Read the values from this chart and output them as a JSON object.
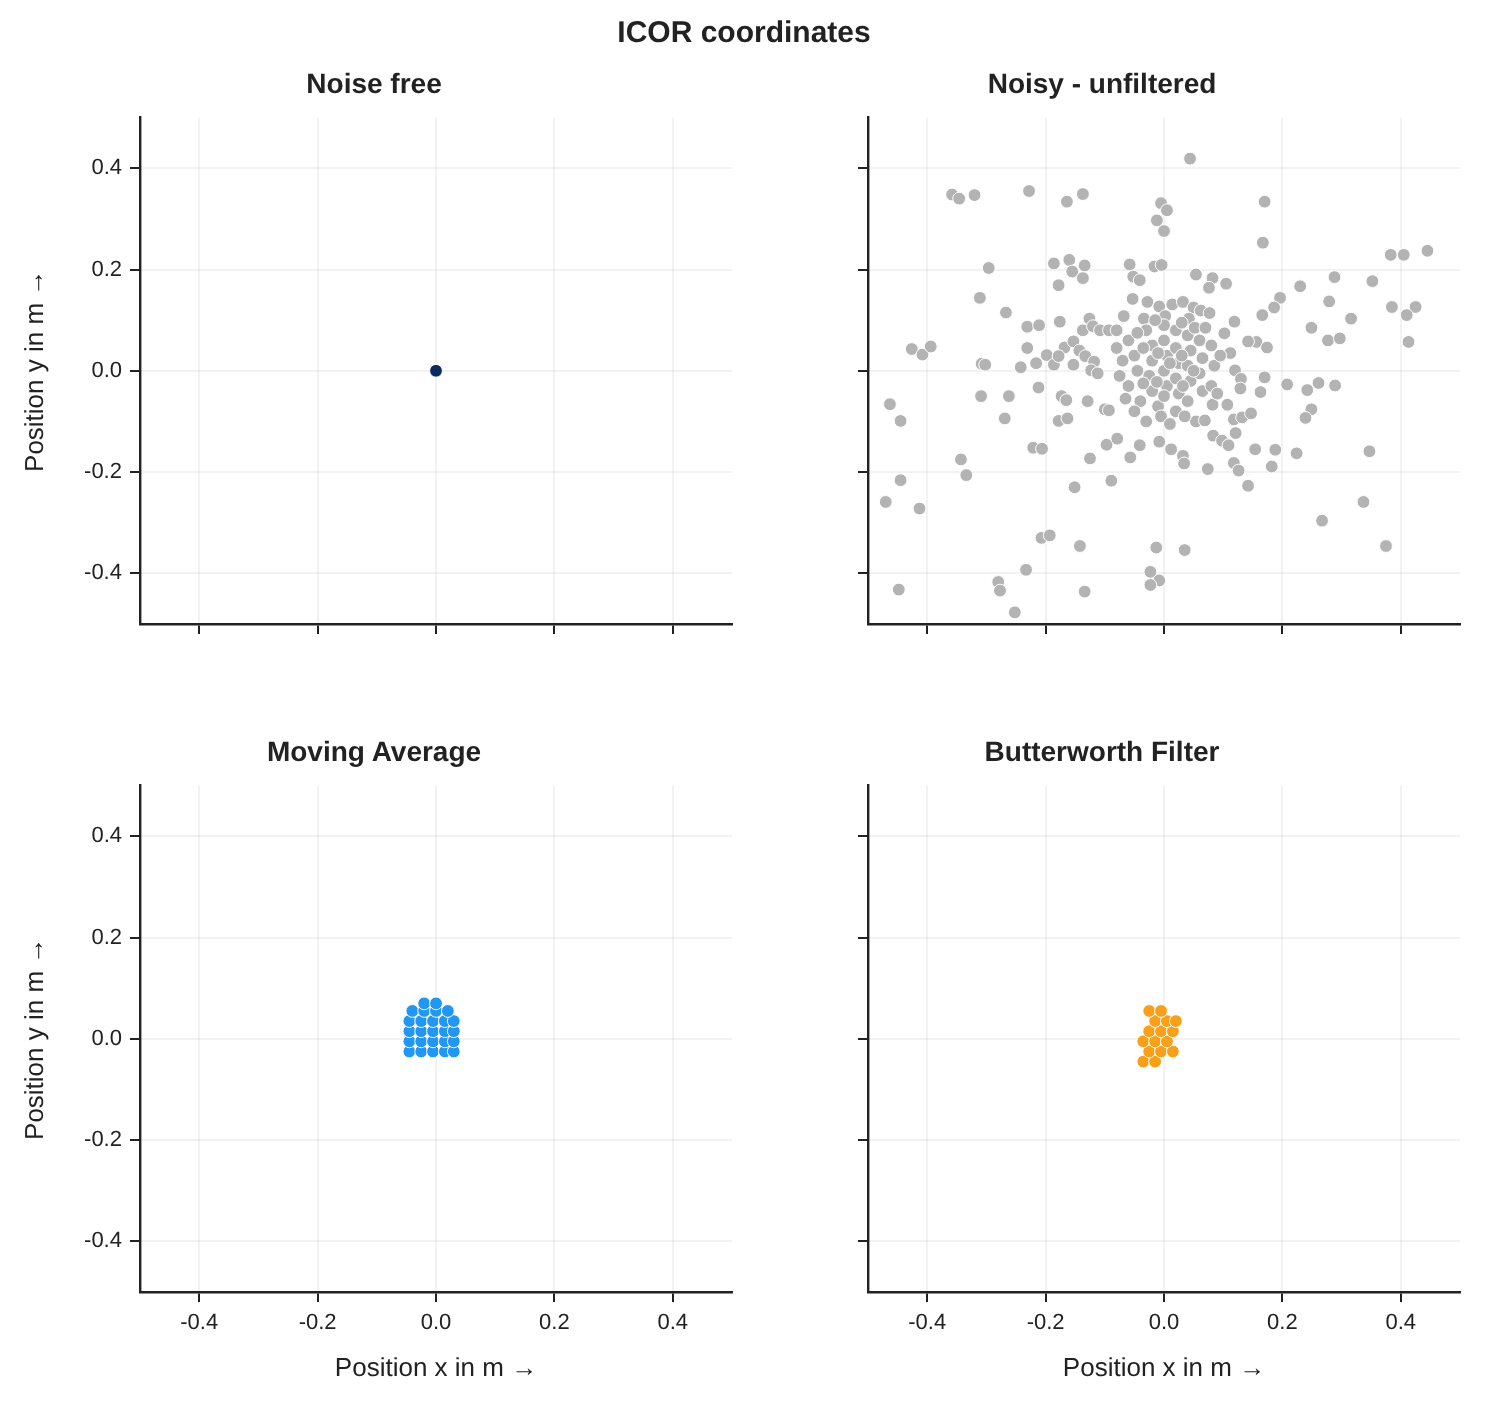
{
  "chart_data": [
    {
      "type": "scatter",
      "title": "Noise free",
      "ylabel": "Position y in m →",
      "annotations": [
        "ICOR coordinates"
      ],
      "color": "#0b2b5c",
      "marker": "circle",
      "grid": true,
      "tick_labels": "y",
      "xlim": [
        -0.5,
        0.5
      ],
      "ylim": [
        -0.5,
        0.5
      ],
      "xticks": [
        -0.4,
        -0.2,
        0,
        0.2,
        0.4
      ],
      "yticks": [
        -0.4,
        -0.2,
        {
          "value": 0,
          "label": "0.0"
        },
        0.2,
        0.4
      ],
      "x": [
        0
      ],
      "values": [
        0
      ]
    },
    {
      "type": "scatter",
      "title": "Noisy - unfiltered",
      "color": "#b3b3b3",
      "marker": "circle",
      "grid": true,
      "tick_labels": false,
      "xlim": [
        -0.5,
        0.5
      ],
      "ylim": [
        -0.5,
        0.5
      ],
      "xticks": [
        -0.4,
        -0.2,
        0,
        0.2,
        0.4
      ],
      "yticks": [
        -0.4,
        -0.2,
        0,
        0.2,
        0.4
      ],
      "x": [
        0.044,
        -0.358,
        -0.346,
        -0.32,
        -0.228,
        -0.164,
        -0.137,
        -0.005,
        0.005,
        -0.012,
        0,
        0.17,
        0.167,
        0.383,
        0.405,
        0.445,
        -0.296,
        -0.186,
        -0.16,
        -0.134,
        -0.155,
        -0.137,
        -0.178,
        -0.311,
        -0.267,
        -0.058,
        -0.016,
        -0.004,
        -0.052,
        -0.041,
        0.054,
        0.082,
        0.105,
        0.076,
        0.288,
        0.352,
        0.23,
        0.196,
        0.186,
        0.279,
        0.316,
        0.385,
        0.425,
        0.41,
        0.413,
        0.249,
        0.277,
        0.297,
        0.166,
        0.156,
        0.174,
        -0.426,
        -0.408,
        -0.394,
        -0.308,
        -0.302,
        -0.231,
        -0.211,
        -0.176,
        -0.231,
        -0.242,
        -0.216,
        -0.198,
        -0.186,
        -0.463,
        -0.445,
        -0.309,
        -0.262,
        -0.269,
        -0.212,
        -0.343,
        -0.334,
        -0.221,
        -0.206,
        -0.445,
        -0.47,
        -0.413,
        -0.448,
        -0.28,
        -0.277,
        -0.233,
        -0.252,
        -0.207,
        -0.193,
        -0.134,
        -0.142,
        -0.151,
        -0.089,
        -0.125,
        -0.013,
        0.035,
        -0.023,
        -0.008,
        -0.023,
        0.074,
        0.118,
        0.126,
        0.142,
        0.154,
        0.188,
        0.182,
        0.224,
        0.267,
        0.337,
        0.347,
        0.375,
        0.208,
        0.242,
        0.249,
        0.239,
        0.261,
        0.289,
        0.17,
        0.163,
        0.118,
        0.132,
        0.147,
        0.121,
        0.083,
        0.098,
        0.109,
        0.054,
        0.069,
        0.032,
        0.034,
        0.012,
        -0.008,
        -0.041,
        -0.057,
        -0.097,
        -0.079,
        -0.1,
        -0.093,
        -0.129,
        -0.178,
        -0.163,
        -0.173,
        -0.165,
        -0.137,
        -0.126,
        -0.12,
        -0.108,
        -0.093,
        -0.08,
        -0.168,
        -0.153,
        -0.143,
        -0.133,
        -0.118,
        -0.153,
        -0.178,
        -0.123,
        -0.112,
        0.102,
        0.119,
        0.112,
        0.12,
        0.13,
        0.129,
        0.142,
        0.107,
        0.082,
        -0.053,
        -0.028,
        -0.008,
        0.014,
        0.032,
        0.05,
        0.062,
        0.077,
        -0.068,
        -0.034,
        0.002,
        0.042,
        -0.06,
        -0.05,
        -0.045,
        -0.06,
        -0.04,
        -0.03,
        -0.02,
        -0.02,
        -0.025,
        -0.02,
        -0.01,
        0,
        0,
        0.005,
        0,
        0.005,
        0,
        -0.005,
        0.02,
        0.02,
        0.025,
        0.02,
        0.025,
        0.02,
        0.04,
        0.045,
        0.04,
        0.045,
        0.04,
        0.06,
        0.065,
        0.06,
        0.065,
        0.08,
        0.085,
        0.08,
        0.09,
        -0.07,
        -0.075,
        -0.035,
        -0.035,
        -0.01,
        0.01,
        -0.012,
        0.03,
        0.032,
        0.05,
        0.052,
        -0.045,
        -0.05,
        0.01,
        0.035,
        -0.03,
        0.07,
        0.095,
        -0.015,
        0.03,
        -0.08,
        -0.065
      ],
      "values": [
        0.419,
        0.348,
        0.34,
        0.347,
        0.355,
        0.334,
        0.349,
        0.331,
        0.317,
        0.297,
        0.276,
        0.334,
        0.253,
        0.229,
        0.229,
        0.237,
        0.203,
        0.212,
        0.219,
        0.208,
        0.196,
        0.183,
        0.169,
        0.144,
        0.115,
        0.21,
        0.206,
        0.209,
        0.186,
        0.179,
        0.19,
        0.183,
        0.172,
        0.164,
        0.185,
        0.177,
        0.167,
        0.144,
        0.125,
        0.137,
        0.103,
        0.126,
        0.126,
        0.11,
        0.057,
        0.085,
        0.06,
        0.064,
        0.11,
        0.057,
        0.046,
        0.043,
        0.032,
        0.048,
        0.014,
        0.012,
        0.087,
        0.09,
        0.097,
        0.045,
        0.007,
        0.015,
        0.031,
        0.012,
        -0.066,
        -0.099,
        -0.05,
        -0.05,
        -0.094,
        -0.033,
        -0.175,
        -0.206,
        -0.152,
        -0.154,
        -0.216,
        -0.259,
        -0.272,
        -0.432,
        -0.417,
        -0.434,
        -0.393,
        -0.477,
        -0.33,
        -0.325,
        -0.436,
        -0.346,
        -0.23,
        -0.217,
        -0.173,
        -0.349,
        -0.354,
        -0.397,
        -0.414,
        -0.423,
        -0.194,
        -0.182,
        -0.197,
        -0.227,
        -0.155,
        -0.156,
        -0.189,
        -0.163,
        -0.296,
        -0.259,
        -0.159,
        -0.346,
        -0.027,
        -0.038,
        -0.076,
        -0.093,
        -0.024,
        -0.029,
        -0.013,
        -0.042,
        -0.096,
        -0.092,
        -0.084,
        -0.123,
        -0.128,
        -0.138,
        -0.147,
        -0.1,
        -0.098,
        -0.168,
        -0.183,
        -0.155,
        -0.14,
        -0.147,
        -0.171,
        -0.146,
        -0.134,
        -0.076,
        -0.078,
        -0.06,
        -0.099,
        -0.094,
        -0.05,
        -0.058,
        0.08,
        0.103,
        0.088,
        0.08,
        0.08,
        0.08,
        0.046,
        0.058,
        0.04,
        0.029,
        0.018,
        0.012,
        0.029,
        0.001,
        -0.005,
        0.074,
        0.097,
        0.035,
        0.001,
        -0.016,
        -0.035,
        0.058,
        -0.067,
        -0.067,
        0.142,
        0.136,
        0.127,
        0.131,
        0.136,
        0.125,
        0.119,
        0.114,
        0.108,
        0.103,
        0.108,
        0.103,
        0.06,
        0.03,
        0,
        -0.03,
        -0.06,
        0.08,
        0.05,
        0.02,
        -0.01,
        -0.04,
        -0.07,
        0.09,
        0.06,
        0.03,
        0,
        -0.03,
        -0.05,
        -0.09,
        0.08,
        0.045,
        0.015,
        -0.015,
        -0.045,
        -0.08,
        0.07,
        0.04,
        0.01,
        -0.02,
        -0.06,
        0.06,
        0.025,
        -0.005,
        -0.04,
        0.05,
        0.01,
        -0.03,
        -0.045,
        0.02,
        -0.01,
        0.045,
        -0.025,
        0.035,
        0.015,
        -0.022,
        0.03,
        -0.03,
        0,
        0.085,
        0.075,
        -0.08,
        -0.105,
        -0.09,
        -0.1,
        0.085,
        0.03,
        0.1,
        0.095,
        0.045,
        -0.055
      ]
    },
    {
      "type": "scatter",
      "title": "Moving Average",
      "xlabel": "Position x in m →",
      "ylabel": "Position y in m →",
      "color": "#2196f3",
      "marker": "circle",
      "grid": true,
      "xlim": [
        -0.5,
        0.5
      ],
      "ylim": [
        -0.5,
        0.5
      ],
      "xticks": [
        -0.4,
        -0.2,
        {
          "value": 0,
          "label": "0.0"
        },
        0.2,
        0.4
      ],
      "yticks": [
        -0.4,
        -0.2,
        {
          "value": 0,
          "label": "0.0"
        },
        0.2,
        0.4
      ],
      "x": [
        -0.045,
        -0.025,
        -0.005,
        0.015,
        0.03,
        -0.045,
        -0.025,
        -0.005,
        0.015,
        0.03,
        -0.045,
        -0.025,
        -0.005,
        0.015,
        0.03,
        -0.045,
        -0.025,
        -0.005,
        0.015,
        0.03,
        -0.04,
        -0.02,
        0.0,
        0.02,
        -0.02,
        0.0
      ],
      "values": [
        -0.025,
        -0.025,
        -0.025,
        -0.025,
        -0.025,
        -0.005,
        -0.005,
        -0.005,
        -0.005,
        -0.005,
        0.015,
        0.015,
        0.015,
        0.015,
        0.015,
        0.035,
        0.035,
        0.035,
        0.035,
        0.035,
        0.055,
        0.055,
        0.055,
        0.055,
        0.07,
        0.07
      ]
    },
    {
      "type": "scatter",
      "title": "Butterworth Filter",
      "xlabel": "Position x in m →",
      "color": "#f9a01b",
      "marker": "circle",
      "grid": true,
      "tick_labels": "x",
      "xlim": [
        -0.5,
        0.5
      ],
      "ylim": [
        -0.5,
        0.5
      ],
      "xticks": [
        -0.4,
        -0.2,
        {
          "value": 0,
          "label": "0.0"
        },
        0.2,
        0.4
      ],
      "yticks": [
        -0.4,
        -0.2,
        0,
        0.2,
        0.4
      ],
      "x": [
        -0.035,
        -0.015,
        -0.025,
        -0.005,
        0.015,
        -0.035,
        -0.015,
        0.005,
        -0.025,
        -0.005,
        0.015,
        -0.015,
        0.005,
        0.02,
        -0.025,
        -0.005
      ],
      "values": [
        -0.045,
        -0.045,
        -0.025,
        -0.025,
        -0.025,
        -0.005,
        -0.005,
        -0.005,
        0.015,
        0.015,
        0.015,
        0.035,
        0.035,
        0.035,
        0.055,
        0.055
      ]
    }
  ]
}
